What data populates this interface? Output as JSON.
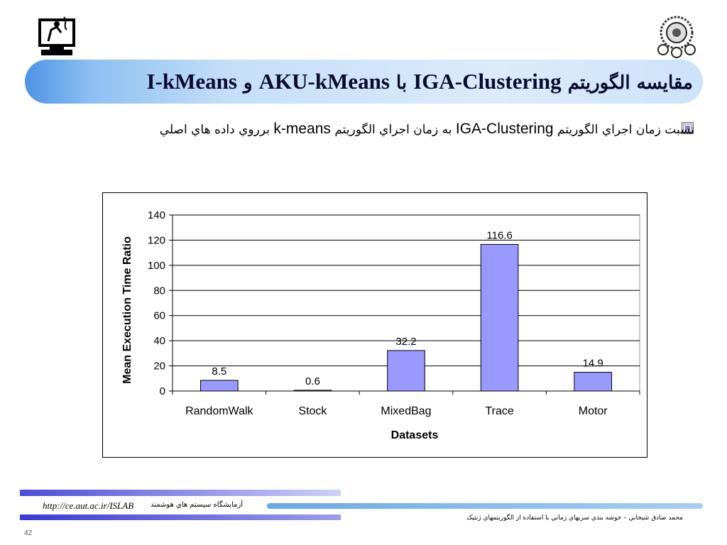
{
  "title": {
    "part1": "مقايسه الگوريتم",
    "part2": "IGA-Clustering",
    "part3": "با",
    "part4": "AKU-kMeans",
    "part5": "و",
    "part6": "I-kMeans"
  },
  "bullet": {
    "part1": "نسبت زمان اجراي الگوريتم",
    "part2": "IGA-Clustering",
    "part3": "به زمان اجراي الگوريتم",
    "part4": "k-means",
    "part5": "برروي داده هاي اصلي"
  },
  "footer": {
    "url": "http://ce.aut.ac.ir/ISLAB",
    "lab_name": "آزمايشگاه سيستم هاي هوشمند",
    "author": "محمد صادق شيخاني – خوشه بندي سريهاي زماني با استفاده از الگوريتمهاي ژنتيک",
    "page_number": "42"
  },
  "chart_data": {
    "type": "bar",
    "categories": [
      "RandomWalk",
      "Stock",
      "MixedBag",
      "Trace",
      "Motor"
    ],
    "values": [
      8.5,
      0.6,
      32.2,
      116.6,
      14.9
    ],
    "data_labels": [
      "8.5",
      "0.6",
      "32.2",
      "116.6",
      "14.9"
    ],
    "xlabel": "Datasets",
    "ylabel": "Mean Execution Time Ratio",
    "ylim": [
      0,
      140
    ],
    "yticks": [
      0,
      20,
      40,
      60,
      80,
      100,
      120,
      140
    ],
    "bar_color": "#9999ff",
    "grid": true,
    "legend": "none"
  }
}
